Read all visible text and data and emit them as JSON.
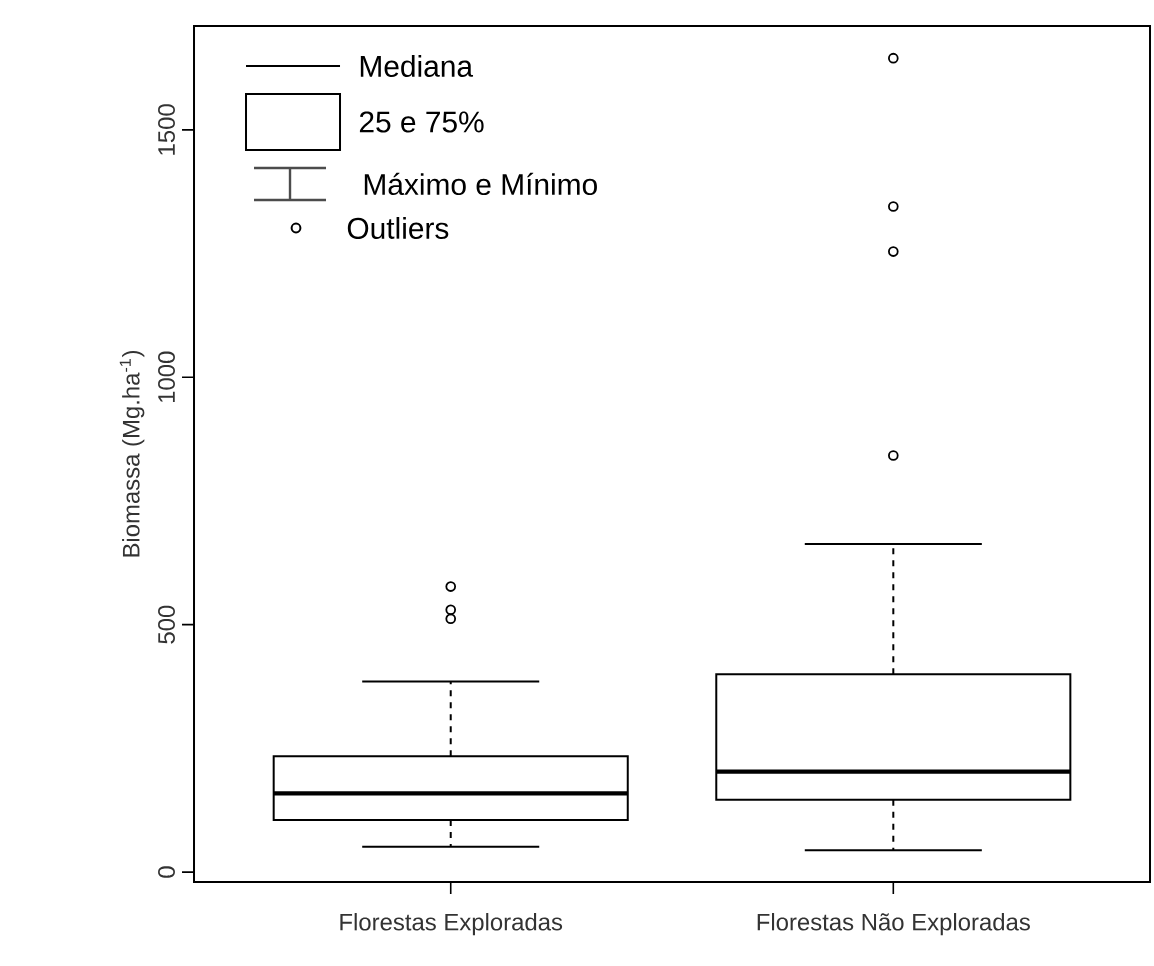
{
  "chart_data": {
    "type": "box",
    "categories": [
      "Florestas Exploradas",
      "Florestas Não Exploradas"
    ],
    "boxes": [
      {
        "low": 51,
        "q1": 105,
        "median": 159,
        "q3": 234,
        "high": 385,
        "outliers": [
          512,
          530,
          577
        ]
      },
      {
        "low": 44,
        "q1": 146,
        "median": 203,
        "q3": 400,
        "high": 663,
        "outliers": [
          842,
          1254,
          1345,
          1645
        ]
      }
    ],
    "ylabel": "Biomassa (Mg.ha$^{-1}$)",
    "ylim": [
      -20,
      1710
    ],
    "yticks": [
      0,
      500,
      1000,
      1500
    ],
    "annotations": [
      "Mediana",
      "25  e 75%",
      "Máximo e Mínimo",
      "Outliers"
    ]
  }
}
